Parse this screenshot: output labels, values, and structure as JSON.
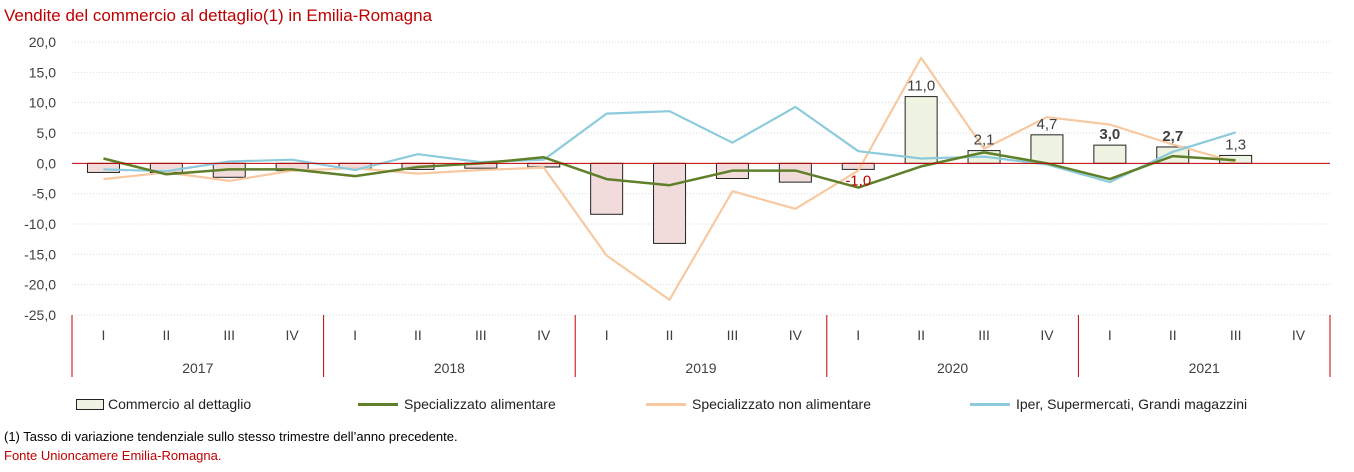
{
  "title": "Vendite del commercio al dettaglio(1) in Emilia-Romagna",
  "footnote": "(1) Tasso di variazione tendenziale sullo stesso trimestre dell’anno precedente.",
  "source": "Fonte Unioncamere Emilia-Romagna.",
  "colors": {
    "title": "#c00000",
    "commercio_pos_fill": "#eef3e2",
    "commercio_neg_fill": "#f2dcdb",
    "alimentare": "#5f7f2a",
    "non_alimentare": "#f8c9a0",
    "iper": "#8ccbdc",
    "zero_line": "#c00000",
    "year_dividers": "#c00000"
  },
  "chart_data": {
    "type": "bar+line",
    "ylim": [
      -25,
      20
    ],
    "yticks": [
      "20,0",
      "15,0",
      "10,0",
      "5,0",
      "0,0",
      "-5,0",
      "-10,0",
      "-15,0",
      "-20,0",
      "-25,0"
    ],
    "quarter_labels": [
      "I",
      "II",
      "III",
      "IV",
      "I",
      "II",
      "III",
      "IV",
      "I",
      "II",
      "III",
      "IV",
      "I",
      "II",
      "III",
      "IV",
      "I",
      "II",
      "III",
      "IV"
    ],
    "years": [
      "2017",
      "2018",
      "2019",
      "2020",
      "2021"
    ],
    "legend_position": "bottom",
    "series": [
      {
        "name": "Commercio al dettaglio",
        "kind": "bar",
        "values": [
          -1.5,
          -1.5,
          -2.3,
          -1.2,
          -0.9,
          -1.0,
          -0.8,
          -0.6,
          -8.4,
          -13.2,
          -2.5,
          -3.1,
          -1.0,
          11.0,
          2.1,
          4.7,
          3.0,
          2.7,
          1.3,
          null
        ]
      },
      {
        "name": "Specializzato alimentare",
        "kind": "line",
        "values": [
          0.8,
          -1.8,
          -1.0,
          -1.0,
          -2.1,
          -0.6,
          0.0,
          1.0,
          -2.6,
          -3.6,
          -1.2,
          -1.2,
          -4.0,
          -0.5,
          1.8,
          0.0,
          -2.6,
          1.2,
          0.5,
          null
        ]
      },
      {
        "name": "Specializzato non alimentare",
        "kind": "line",
        "values": [
          -2.6,
          -1.5,
          -2.9,
          -1.2,
          -0.8,
          -1.7,
          -1.1,
          -0.7,
          -15.2,
          -22.5,
          -4.6,
          -7.5,
          -1.2,
          17.4,
          2.4,
          7.6,
          6.4,
          3.1,
          0.2,
          null
        ]
      },
      {
        "name": "Iper, Supermercati, Grandi magazzini",
        "kind": "line",
        "values": [
          -1.0,
          -1.3,
          0.3,
          0.6,
          -1.1,
          1.5,
          0.2,
          0.6,
          8.2,
          8.6,
          3.4,
          9.3,
          2.0,
          0.8,
          1.1,
          -0.2,
          -3.1,
          1.9,
          5.1,
          null
        ]
      }
    ],
    "data_labels": [
      {
        "index": 12,
        "text": "-1,0",
        "color": "#c00000",
        "bold": false
      },
      {
        "index": 13,
        "text": "11,0",
        "color": "#404040",
        "bold": false
      },
      {
        "index": 14,
        "text": "2,1",
        "color": "#404040",
        "bold": false
      },
      {
        "index": 15,
        "text": "4,7",
        "color": "#404040",
        "bold": false
      },
      {
        "index": 16,
        "text": "3,0",
        "color": "#404040",
        "bold": true
      },
      {
        "index": 17,
        "text": "2,7",
        "color": "#404040",
        "bold": true
      },
      {
        "index": 18,
        "text": "1,3",
        "color": "#404040",
        "bold": false
      }
    ]
  }
}
